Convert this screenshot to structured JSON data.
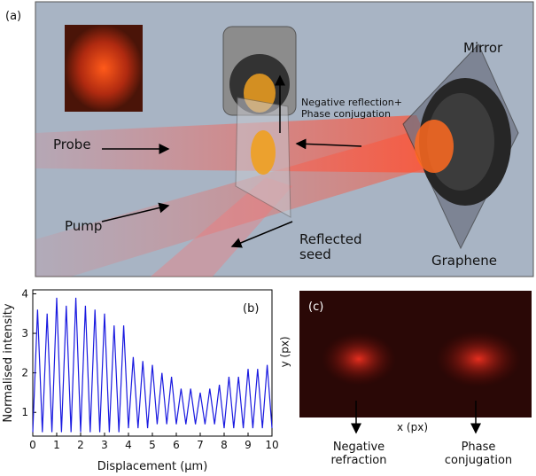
{
  "panel_a": {
    "label": "(a)",
    "probe": "Probe",
    "pump": "Pump",
    "reflected": "Reflected seed",
    "negative_reflection": "Negative reflection+ Phase conjugation",
    "mirror": "Mirror",
    "graphene": "Graphene"
  },
  "chart_data": {
    "type": "line",
    "label": "(b)",
    "x_label": "Displacement (μm)",
    "y_label": "Normalised intensity",
    "color": "#1a1ae0",
    "x": [
      0,
      0.2,
      0.4,
      0.6,
      0.8,
      1.0,
      1.2,
      1.4,
      1.6,
      1.8,
      2.0,
      2.2,
      2.4,
      2.6,
      2.8,
      3.0,
      3.2,
      3.4,
      3.6,
      3.8,
      4.0,
      4.2,
      4.4,
      4.6,
      4.8,
      5.0,
      5.2,
      5.4,
      5.6,
      5.8,
      6.0,
      6.2,
      6.4,
      6.6,
      6.8,
      7.0,
      7.2,
      7.4,
      7.6,
      7.8,
      8.0,
      8.2,
      8.4,
      8.6,
      8.8,
      9.0,
      9.2,
      9.4,
      9.6,
      9.8,
      10.0
    ],
    "values": [
      0.5,
      3.6,
      0.5,
      3.5,
      0.5,
      3.9,
      0.5,
      3.7,
      0.5,
      3.9,
      0.5,
      3.7,
      0.5,
      3.6,
      0.5,
      3.5,
      0.5,
      3.2,
      0.5,
      3.2,
      0.6,
      2.4,
      0.6,
      2.3,
      0.6,
      2.2,
      0.7,
      2.0,
      0.7,
      1.9,
      0.7,
      1.6,
      0.7,
      1.6,
      0.7,
      1.5,
      0.7,
      1.6,
      0.7,
      1.7,
      0.6,
      1.9,
      0.6,
      1.9,
      0.6,
      2.1,
      0.6,
      2.1,
      0.6,
      2.2,
      0.6
    ],
    "xlim": [
      0,
      10
    ],
    "xticks": [
      0,
      1,
      2,
      3,
      4,
      5,
      6,
      7,
      8,
      9,
      10
    ],
    "ylim": [
      0.4,
      4.1
    ],
    "yticks": [
      1,
      2,
      3,
      4
    ]
  },
  "panel_c": {
    "label": "(c)",
    "y_label": "y (px)",
    "x_label": "x (px)",
    "negative_refraction": "Negative refraction",
    "phase_conjugation": "Phase conjugation"
  }
}
